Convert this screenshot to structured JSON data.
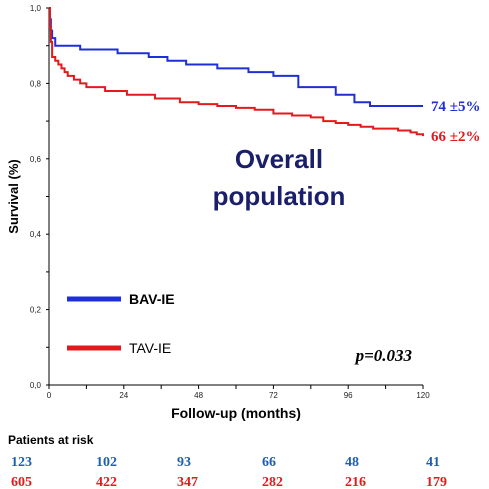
{
  "chart_data": {
    "type": "line",
    "subtype": "kaplan-meier",
    "title": "Overall\npopulation",
    "xlabel": "Follow-up (months)",
    "ylabel": "Survival (%)",
    "xlim": [
      0,
      120
    ],
    "ylim": [
      0.0,
      1.0
    ],
    "x_ticks": [
      "0",
      "24",
      "48",
      "72",
      "96",
      "120"
    ],
    "y_ticks": [
      "0,0",
      "0,2",
      "0,4",
      "0,6",
      "0,8",
      "1,0"
    ],
    "grid": false,
    "legend_position": "bottom-left",
    "p_value": "p=0.033",
    "colors": {
      "BAV-IE": "#1f2fd6",
      "TAV-IE": "#e31a1c"
    },
    "series": [
      {
        "name": "BAV-IE",
        "end_label": "74 ±5%",
        "color": "#1f2fd6",
        "points": [
          [
            0,
            1.0
          ],
          [
            0.3,
            0.97
          ],
          [
            0.6,
            0.94
          ],
          [
            1,
            0.92
          ],
          [
            2,
            0.9
          ],
          [
            8,
            0.9
          ],
          [
            10,
            0.89
          ],
          [
            20,
            0.89
          ],
          [
            22,
            0.88
          ],
          [
            30,
            0.88
          ],
          [
            32,
            0.87
          ],
          [
            36,
            0.87
          ],
          [
            38,
            0.86
          ],
          [
            42,
            0.86
          ],
          [
            44,
            0.85
          ],
          [
            52,
            0.85
          ],
          [
            54,
            0.84
          ],
          [
            62,
            0.84
          ],
          [
            64,
            0.83
          ],
          [
            70,
            0.83
          ],
          [
            72,
            0.82
          ],
          [
            78,
            0.82
          ],
          [
            80,
            0.79
          ],
          [
            90,
            0.79
          ],
          [
            92,
            0.77
          ],
          [
            96,
            0.77
          ],
          [
            98,
            0.75
          ],
          [
            101,
            0.75
          ],
          [
            103,
            0.74
          ],
          [
            120,
            0.74
          ]
        ]
      },
      {
        "name": "TAV-IE",
        "end_label": "66 ±2%",
        "color": "#e31a1c",
        "points": [
          [
            0,
            1.0
          ],
          [
            0.3,
            0.95
          ],
          [
            0.6,
            0.91
          ],
          [
            1,
            0.87
          ],
          [
            2,
            0.86
          ],
          [
            3,
            0.85
          ],
          [
            4,
            0.84
          ],
          [
            5,
            0.83
          ],
          [
            6,
            0.82
          ],
          [
            8,
            0.81
          ],
          [
            10,
            0.8
          ],
          [
            12,
            0.79
          ],
          [
            15,
            0.79
          ],
          [
            18,
            0.78
          ],
          [
            22,
            0.78
          ],
          [
            25,
            0.77
          ],
          [
            30,
            0.77
          ],
          [
            34,
            0.76
          ],
          [
            38,
            0.76
          ],
          [
            42,
            0.75
          ],
          [
            48,
            0.745
          ],
          [
            54,
            0.74
          ],
          [
            60,
            0.735
          ],
          [
            66,
            0.73
          ],
          [
            72,
            0.72
          ],
          [
            78,
            0.715
          ],
          [
            84,
            0.71
          ],
          [
            88,
            0.7
          ],
          [
            92,
            0.695
          ],
          [
            96,
            0.69
          ],
          [
            100,
            0.685
          ],
          [
            104,
            0.68
          ],
          [
            108,
            0.68
          ],
          [
            112,
            0.675
          ],
          [
            116,
            0.67
          ],
          [
            118,
            0.665
          ],
          [
            120,
            0.66
          ]
        ]
      }
    ],
    "risk_table": {
      "label": "Patients at risk",
      "BAV-IE": [
        "123",
        "102",
        "93",
        "66",
        "48",
        "41"
      ],
      "TAV-IE": [
        "605",
        "422",
        "347",
        "282",
        "216",
        "179"
      ]
    }
  }
}
